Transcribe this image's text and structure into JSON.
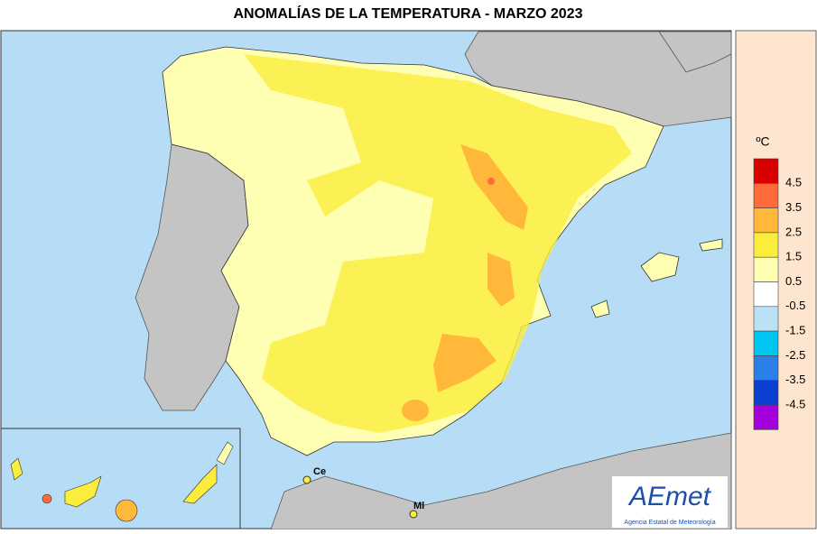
{
  "header": {
    "title": "ANOMALÍAS DE LA TEMPERATURA - MARZO 2023"
  },
  "legend": {
    "title": "ºC",
    "ticks": [
      4.5,
      3.5,
      2.5,
      1.5,
      0.5,
      -0.5,
      -1.5,
      -2.5,
      -3.5,
      -4.5
    ],
    "colors": [
      "#d80000",
      "#ff6a3a",
      "#ffb83a",
      "#fbed3c",
      "#ffffb4",
      "#ffffff",
      "#b9e2f6",
      "#00c6ef",
      "#2b7fe8",
      "#0b3fd2",
      "#a300dc"
    ]
  },
  "places": [
    {
      "label": "Ce"
    },
    {
      "label": "Ml"
    }
  ],
  "logo": {
    "name": "AEmet",
    "subtitle": "Agencia Estatal de Meteorología"
  }
}
